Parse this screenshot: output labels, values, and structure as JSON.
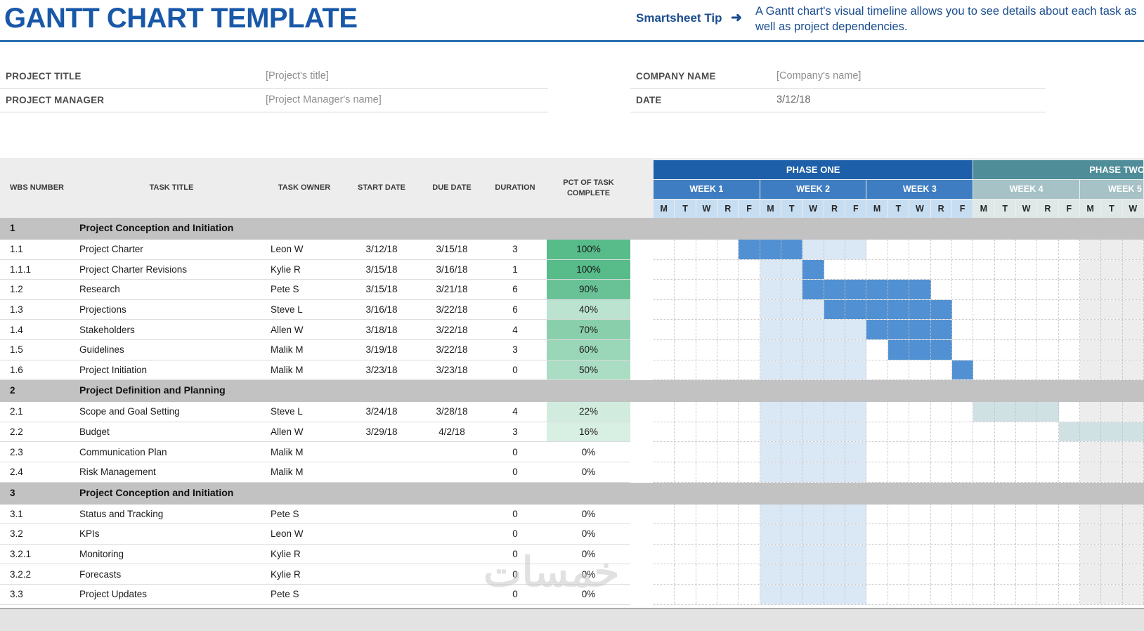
{
  "header": {
    "title": "GANTT CHART TEMPLATE",
    "tip_label": "Smartsheet Tip",
    "tip_arrow": "➜",
    "tip_text": "A Gantt chart's visual timeline allows you to see details about each task as well as project dependencies."
  },
  "info": {
    "left": [
      {
        "label": "PROJECT TITLE",
        "value": "[Project's title]"
      },
      {
        "label": "PROJECT MANAGER",
        "value": "[Project Manager's name]"
      }
    ],
    "right": [
      {
        "label": "COMPANY NAME",
        "value": "[Company's name]"
      },
      {
        "label": "DATE",
        "value": "3/12/18"
      }
    ]
  },
  "table": {
    "columns": [
      "WBS NUMBER",
      "TASK TITLE",
      "TASK OWNER",
      "START DATE",
      "DUE DATE",
      "DURATION",
      "PCT OF TASK COMPLETE"
    ]
  },
  "gantt": {
    "phases": [
      {
        "label": "PHASE ONE",
        "weeks": [
          "WEEK 1",
          "WEEK 2",
          "WEEK 3"
        ]
      },
      {
        "label": "PHASE TWO",
        "weeks": [
          "WEEK 4",
          "WEEK 5"
        ]
      }
    ],
    "day_letters": [
      "M",
      "T",
      "W",
      "R",
      "F"
    ],
    "visible_day_columns": 23
  },
  "colors": {
    "title_blue": "#1958a8",
    "rule_blue": "#2a6fb0",
    "phase1_bg": "#1e5fa9",
    "phase2_bg": "#4f8d99",
    "week123_bg": "#3e7dc1",
    "week45_bg": "#a6c2c6",
    "day123_bg": "#c7ddf1",
    "day45_bg": "#dfe8e6",
    "bar_dark": "#5191d3",
    "bar_light": "#dae7f5",
    "bar_teal": "#d0e1e4",
    "bar_gray": "#ededed",
    "section_band": "#c2c2c2",
    "pct_green_full": "#57bb8a"
  },
  "sections": [
    {
      "number": "1",
      "title": "Project Conception and Initiation",
      "tasks": [
        {
          "wbs": "1.1",
          "title": "Project Charter",
          "owner": "Leon W",
          "start": "3/12/18",
          "due": "3/15/18",
          "duration": "3",
          "pct": "100%",
          "pct_color": "#57bb8a",
          "bars": [
            {
              "from": 5,
              "to": 7,
              "type": "dark"
            },
            {
              "from": 8,
              "to": 10,
              "type": "light"
            },
            {
              "from": 21,
              "to": 23,
              "type": "gray"
            }
          ]
        },
        {
          "wbs": "1.1.1",
          "title": "Project Charter Revisions",
          "owner": "Kylie R",
          "start": "3/15/18",
          "due": "3/16/18",
          "duration": "1",
          "pct": "100%",
          "pct_color": "#57bb8a",
          "bars": [
            {
              "from": 6,
              "to": 7,
              "type": "light"
            },
            {
              "from": 8,
              "to": 8,
              "type": "dark"
            },
            {
              "from": 21,
              "to": 23,
              "type": "gray"
            }
          ]
        },
        {
          "wbs": "1.2",
          "title": "Research",
          "owner": "Pete S",
          "start": "3/15/18",
          "due": "3/21/18",
          "duration": "6",
          "pct": "90%",
          "pct_color": "#68c296",
          "bars": [
            {
              "from": 6,
              "to": 7,
              "type": "light"
            },
            {
              "from": 8,
              "to": 13,
              "type": "dark"
            },
            {
              "from": 21,
              "to": 23,
              "type": "gray"
            }
          ]
        },
        {
          "wbs": "1.3",
          "title": "Projections",
          "owner": "Steve L",
          "start": "3/16/18",
          "due": "3/22/18",
          "duration": "6",
          "pct": "40%",
          "pct_color": "#bce3d0",
          "bars": [
            {
              "from": 6,
              "to": 8,
              "type": "light"
            },
            {
              "from": 9,
              "to": 14,
              "type": "dark"
            },
            {
              "from": 21,
              "to": 23,
              "type": "gray"
            }
          ]
        },
        {
          "wbs": "1.4",
          "title": "Stakeholders",
          "owner": "Allen W",
          "start": "3/18/18",
          "due": "3/22/18",
          "duration": "4",
          "pct": "70%",
          "pct_color": "#89cfac",
          "bars": [
            {
              "from": 6,
              "to": 10,
              "type": "light"
            },
            {
              "from": 11,
              "to": 14,
              "type": "dark"
            },
            {
              "from": 21,
              "to": 23,
              "type": "gray"
            }
          ]
        },
        {
          "wbs": "1.5",
          "title": "Guidelines",
          "owner": "Malik M",
          "start": "3/19/18",
          "due": "3/22/18",
          "duration": "3",
          "pct": "60%",
          "pct_color": "#9ad6b8",
          "bars": [
            {
              "from": 6,
              "to": 10,
              "type": "light"
            },
            {
              "from": 12,
              "to": 14,
              "type": "dark"
            },
            {
              "from": 21,
              "to": 23,
              "type": "gray"
            }
          ]
        },
        {
          "wbs": "1.6",
          "title": "Project Initiation",
          "owner": "Malik M",
          "start": "3/23/18",
          "due": "3/23/18",
          "duration": "0",
          "pct": "50%",
          "pct_color": "#abdcc4",
          "bars": [
            {
              "from": 6,
              "to": 10,
              "type": "light"
            },
            {
              "from": 15,
              "to": 15,
              "type": "dark"
            },
            {
              "from": 21,
              "to": 23,
              "type": "gray"
            }
          ]
        }
      ]
    },
    {
      "number": "2",
      "title": "Project Definition and Planning",
      "tasks": [
        {
          "wbs": "2.1",
          "title": "Scope and Goal Setting",
          "owner": "Steve L",
          "start": "3/24/18",
          "due": "3/28/18",
          "duration": "4",
          "pct": "22%",
          "pct_color": "#d1ecdf",
          "bars": [
            {
              "from": 6,
              "to": 10,
              "type": "light"
            },
            {
              "from": 16,
              "to": 19,
              "type": "teal"
            },
            {
              "from": 21,
              "to": 23,
              "type": "gray"
            }
          ]
        },
        {
          "wbs": "2.2",
          "title": "Budget",
          "owner": "Allen W",
          "start": "3/29/18",
          "due": "4/2/18",
          "duration": "3",
          "pct": "16%",
          "pct_color": "#d8efe4",
          "bars": [
            {
              "from": 6,
              "to": 10,
              "type": "light"
            },
            {
              "from": 20,
              "to": 23,
              "type": "teal"
            }
          ]
        },
        {
          "wbs": "2.3",
          "title": "Communication Plan",
          "owner": "Malik M",
          "start": "",
          "due": "",
          "duration": "0",
          "pct": "0%",
          "pct_color": "",
          "bars": [
            {
              "from": 6,
              "to": 10,
              "type": "light"
            },
            {
              "from": 21,
              "to": 23,
              "type": "gray"
            }
          ]
        },
        {
          "wbs": "2.4",
          "title": "Risk Management",
          "owner": "Malik M",
          "start": "",
          "due": "",
          "duration": "0",
          "pct": "0%",
          "pct_color": "",
          "bars": [
            {
              "from": 6,
              "to": 10,
              "type": "light"
            },
            {
              "from": 21,
              "to": 23,
              "type": "gray"
            }
          ]
        }
      ]
    },
    {
      "number": "3",
      "title": "Project Conception and Initiation",
      "tasks": [
        {
          "wbs": "3.1",
          "title": "Status and Tracking",
          "owner": "Pete S",
          "start": "",
          "due": "",
          "duration": "0",
          "pct": "0%",
          "pct_color": "",
          "bars": [
            {
              "from": 6,
              "to": 10,
              "type": "light"
            },
            {
              "from": 21,
              "to": 23,
              "type": "gray"
            }
          ]
        },
        {
          "wbs": "3.2",
          "title": "KPIs",
          "owner": "Leon W",
          "start": "",
          "due": "",
          "duration": "0",
          "pct": "0%",
          "pct_color": "",
          "bars": [
            {
              "from": 6,
              "to": 10,
              "type": "light"
            },
            {
              "from": 21,
              "to": 23,
              "type": "gray"
            }
          ]
        },
        {
          "wbs": "3.2.1",
          "title": "Monitoring",
          "owner": "Kylie R",
          "start": "",
          "due": "",
          "duration": "0",
          "pct": "0%",
          "pct_color": "",
          "bars": [
            {
              "from": 6,
              "to": 10,
              "type": "light"
            },
            {
              "from": 21,
              "to": 23,
              "type": "gray"
            }
          ]
        },
        {
          "wbs": "3.2.2",
          "title": "Forecasts",
          "owner": "Kylie R",
          "start": "",
          "due": "",
          "duration": "0",
          "pct": "0%",
          "pct_color": "",
          "bars": [
            {
              "from": 6,
              "to": 10,
              "type": "light"
            },
            {
              "from": 21,
              "to": 23,
              "type": "gray"
            }
          ]
        },
        {
          "wbs": "3.3",
          "title": "Project Updates",
          "owner": "Pete S",
          "start": "",
          "due": "",
          "duration": "0",
          "pct": "0%",
          "pct_color": "",
          "bars": [
            {
              "from": 6,
              "to": 10,
              "type": "light"
            },
            {
              "from": 21,
              "to": 23,
              "type": "gray"
            }
          ]
        }
      ]
    }
  ],
  "watermark": "خمسات"
}
